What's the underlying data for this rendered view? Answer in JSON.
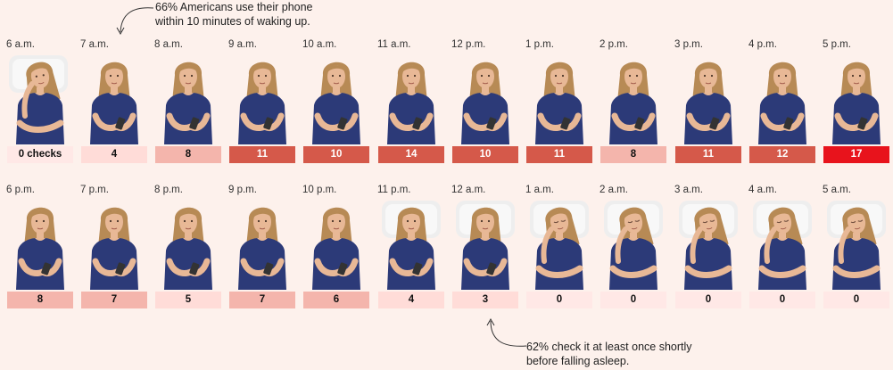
{
  "annotations": {
    "top": {
      "line1": "66% Americans use their phone",
      "line2": "within 10 minutes of waking up."
    },
    "bottom": {
      "line1": "62% check it at least once shortly",
      "line2": "before falling asleep."
    }
  },
  "colors": {
    "background": "#fdf1ec",
    "shirt": "#2c3a78",
    "skin": "#e8b896",
    "hair": "#b78a55",
    "pillow": "#eeeeee",
    "phone": "#333333",
    "scale": [
      "#ffe8e6",
      "#ffdcd8",
      "#f4b5ac",
      "#d5594a",
      "#e8131c"
    ]
  },
  "hours": [
    {
      "time": "6 a.m.",
      "count": "0 checks",
      "value": 0,
      "state": "bed-wake",
      "level": 0
    },
    {
      "time": "7 a.m.",
      "count": "4",
      "value": 4,
      "state": "phone",
      "level": 1
    },
    {
      "time": "8 a.m.",
      "count": "8",
      "value": 8,
      "state": "phone",
      "level": 2
    },
    {
      "time": "9 a.m.",
      "count": "11",
      "value": 11,
      "state": "phone",
      "level": 3
    },
    {
      "time": "10 a.m.",
      "count": "10",
      "value": 10,
      "state": "phone",
      "level": 3
    },
    {
      "time": "11 a.m.",
      "count": "14",
      "value": 14,
      "state": "phone",
      "level": 3
    },
    {
      "time": "12 p.m.",
      "count": "10",
      "value": 10,
      "state": "phone",
      "level": 3
    },
    {
      "time": "1 p.m.",
      "count": "11",
      "value": 11,
      "state": "phone",
      "level": 3
    },
    {
      "time": "2 p.m.",
      "count": "8",
      "value": 8,
      "state": "phone",
      "level": 2
    },
    {
      "time": "3 p.m.",
      "count": "11",
      "value": 11,
      "state": "phone",
      "level": 3
    },
    {
      "time": "4 p.m.",
      "count": "12",
      "value": 12,
      "state": "phone",
      "level": 3
    },
    {
      "time": "5 p.m.",
      "count": "17",
      "value": 17,
      "state": "phone",
      "level": 4
    },
    {
      "time": "6 p.m.",
      "count": "8",
      "value": 8,
      "state": "phone",
      "level": 2
    },
    {
      "time": "7 p.m.",
      "count": "7",
      "value": 7,
      "state": "phone",
      "level": 2
    },
    {
      "time": "8 p.m.",
      "count": "5",
      "value": 5,
      "state": "phone",
      "level": 1
    },
    {
      "time": "9 p.m.",
      "count": "7",
      "value": 7,
      "state": "phone",
      "level": 2
    },
    {
      "time": "10 p.m.",
      "count": "6",
      "value": 6,
      "state": "phone",
      "level": 2
    },
    {
      "time": "11 p.m.",
      "count": "4",
      "value": 4,
      "state": "bed-phone",
      "level": 1
    },
    {
      "time": "12 a.m.",
      "count": "3",
      "value": 3,
      "state": "bed-phone",
      "level": 1
    },
    {
      "time": "1 a.m.",
      "count": "0",
      "value": 0,
      "state": "sleep",
      "level": 0
    },
    {
      "time": "2 a.m.",
      "count": "0",
      "value": 0,
      "state": "sleep",
      "level": 0
    },
    {
      "time": "3 a.m.",
      "count": "0",
      "value": 0,
      "state": "sleep",
      "level": 0
    },
    {
      "time": "4 a.m.",
      "count": "0",
      "value": 0,
      "state": "sleep",
      "level": 0
    },
    {
      "time": "5 a.m.",
      "count": "0",
      "value": 0,
      "state": "sleep",
      "level": 0
    }
  ]
}
